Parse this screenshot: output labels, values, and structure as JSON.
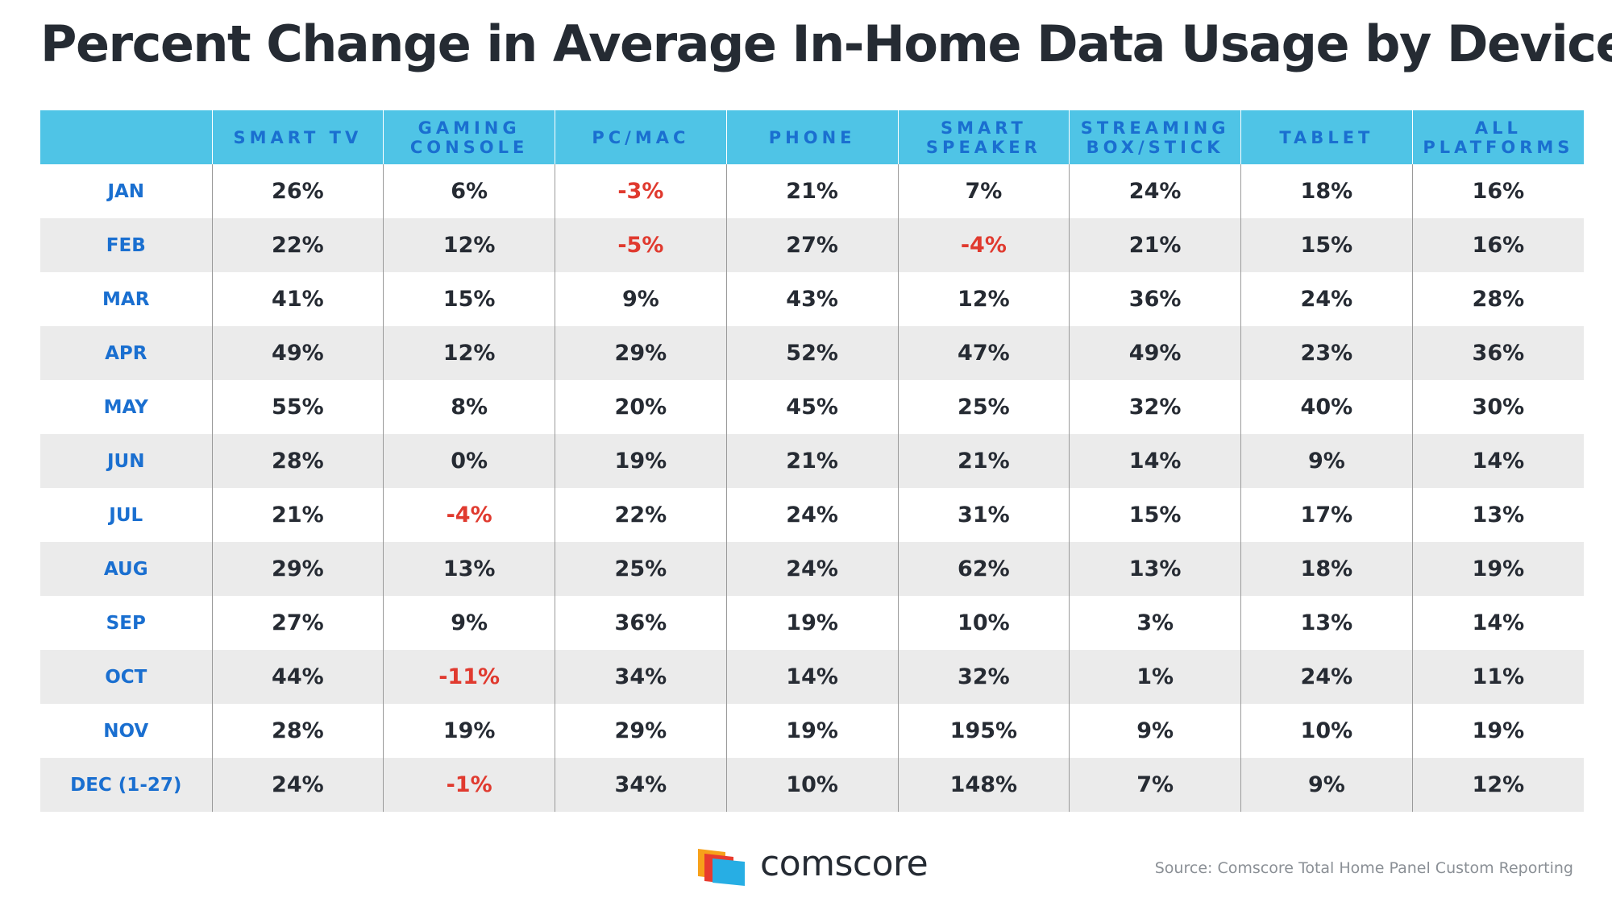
{
  "title": "Percent Change in Average In-Home Data Usage by Device",
  "colors": {
    "header_bg": "#4fc4e6",
    "header_text": "#1a6fd0",
    "negative": "#e03a2f",
    "stripe": "#ebebeb"
  },
  "chart_data": {
    "type": "table",
    "title": "Percent Change in Average In-Home Data Usage by Device",
    "columns": [
      "SMART TV",
      "GAMING\nCONSOLE",
      "PC/MAC",
      "PHONE",
      "SMART\nSPEAKER",
      "STREAMING\nBOX/STICK",
      "TABLET",
      "ALL\nPLATFORMS"
    ],
    "rows": [
      {
        "label": "JAN",
        "values": [
          "26%",
          "6%",
          "-3%",
          "21%",
          "7%",
          "24%",
          "18%",
          "16%"
        ]
      },
      {
        "label": "FEB",
        "values": [
          "22%",
          "12%",
          "-5%",
          "27%",
          "-4%",
          "21%",
          "15%",
          "16%"
        ]
      },
      {
        "label": "MAR",
        "values": [
          "41%",
          "15%",
          "9%",
          "43%",
          "12%",
          "36%",
          "24%",
          "28%"
        ]
      },
      {
        "label": "APR",
        "values": [
          "49%",
          "12%",
          "29%",
          "52%",
          "47%",
          "49%",
          "23%",
          "36%"
        ]
      },
      {
        "label": "MAY",
        "values": [
          "55%",
          "8%",
          "20%",
          "45%",
          "25%",
          "32%",
          "40%",
          "30%"
        ]
      },
      {
        "label": "JUN",
        "values": [
          "28%",
          "0%",
          "19%",
          "21%",
          "21%",
          "14%",
          "9%",
          "14%"
        ]
      },
      {
        "label": "JUL",
        "values": [
          "21%",
          "-4%",
          "22%",
          "24%",
          "31%",
          "15%",
          "17%",
          "13%"
        ]
      },
      {
        "label": "AUG",
        "values": [
          "29%",
          "13%",
          "25%",
          "24%",
          "62%",
          "13%",
          "18%",
          "19%"
        ]
      },
      {
        "label": "SEP",
        "values": [
          "27%",
          "9%",
          "36%",
          "19%",
          "10%",
          "3%",
          "13%",
          "14%"
        ]
      },
      {
        "label": "OCT",
        "values": [
          "44%",
          "-11%",
          "34%",
          "14%",
          "32%",
          "1%",
          "24%",
          "11%"
        ]
      },
      {
        "label": "NOV",
        "values": [
          "28%",
          "19%",
          "29%",
          "19%",
          "195%",
          "9%",
          "10%",
          "19%"
        ]
      },
      {
        "label": "DEC (1-27)",
        "values": [
          "24%",
          "-1%",
          "34%",
          "10%",
          "148%",
          "7%",
          "9%",
          "12%"
        ]
      }
    ]
  },
  "footer": {
    "logo_text": "comscore",
    "source": "Source: Comscore Total Home Panel Custom Reporting"
  }
}
